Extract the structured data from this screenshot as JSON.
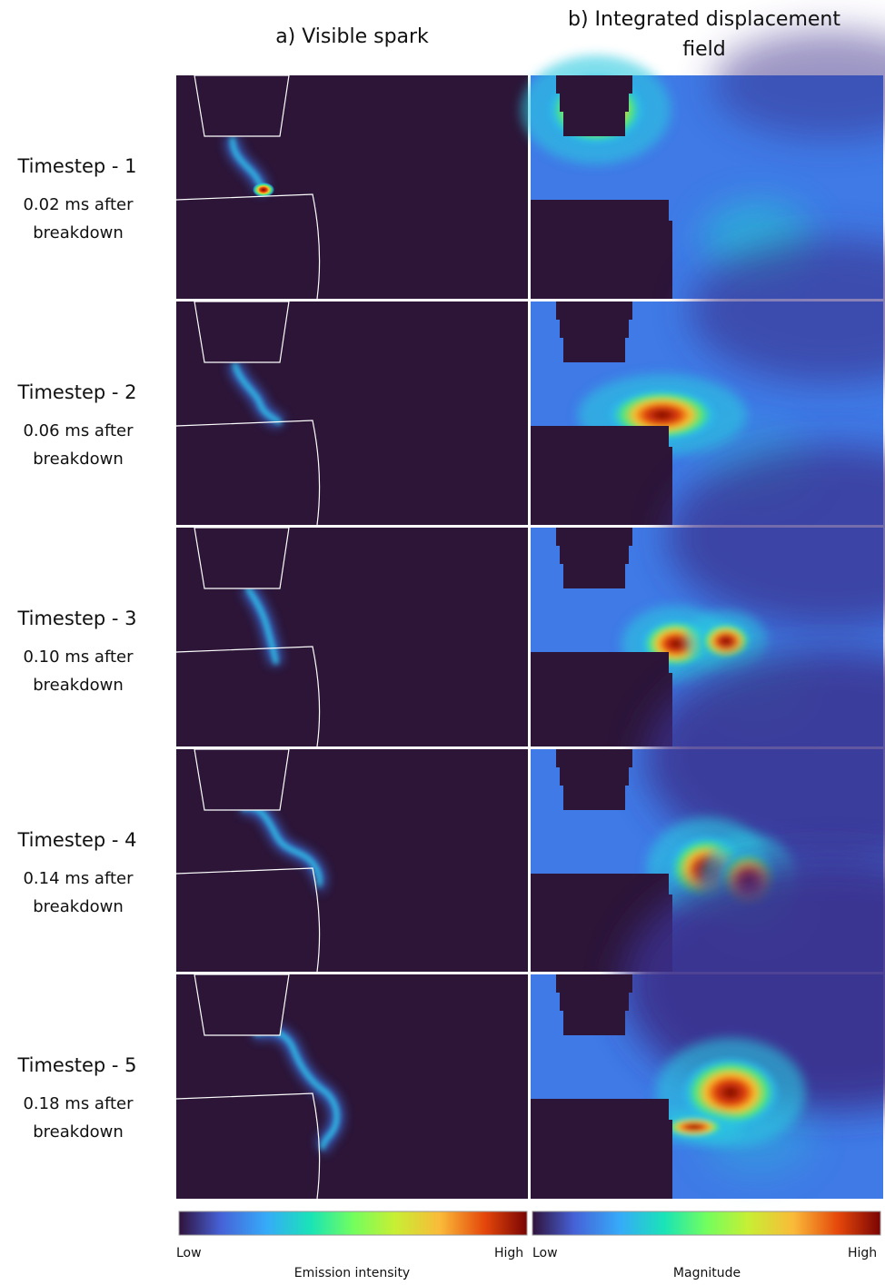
{
  "headers": {
    "a": "a) Visible spark",
    "b": "b) Integrated displacement field"
  },
  "rows": [
    {
      "label": "Timestep - 1",
      "time": "0.02 ms after breakdown"
    },
    {
      "label": "Timestep - 2",
      "time": "0.06 ms after breakdown"
    },
    {
      "label": "Timestep - 3",
      "time": "0.10 ms after breakdown"
    },
    {
      "label": "Timestep - 4",
      "time": "0.14 ms after breakdown"
    },
    {
      "label": "Timestep - 5",
      "time": "0.18 ms after breakdown"
    }
  ],
  "colorbars": [
    {
      "low": "Low",
      "high": "High",
      "title": "Emission intensity"
    },
    {
      "low": "Low",
      "high": "High",
      "title": "Magnitude"
    }
  ]
}
